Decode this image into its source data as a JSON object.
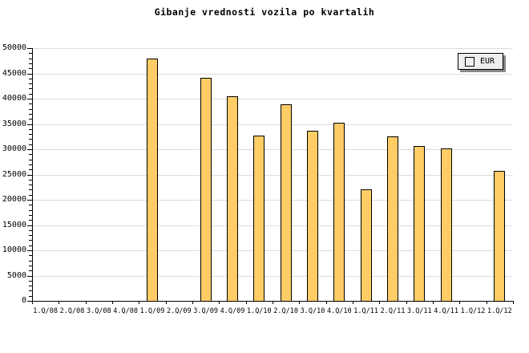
{
  "title": "Gibanje vrednosti vozila po kvartalih",
  "legend": {
    "label": "EUR"
  },
  "colors": {
    "bar_fill": "#FFCC66",
    "bar_border": "#000000",
    "gridline": "#DCDCDC",
    "axis": "#000000",
    "legend_bg": "#EEEEEE",
    "legend_shadow": "#888888",
    "background": "#FFFFFF"
  },
  "chart_data": {
    "type": "bar",
    "title": "Gibanje vrednosti vozila po kvartalih",
    "categories": [
      "1.Q/08",
      "2.Q/08",
      "3.Q/08",
      "4.Q/08",
      "1.Q/09",
      "2.Q/09",
      "3.Q/09",
      "4.Q/09",
      "1.Q/10",
      "2.Q/10",
      "3.Q/10",
      "4.Q/10",
      "1.Q/11",
      "2.Q/11",
      "3.Q/11",
      "4.Q/11",
      "1.Q/12",
      "1.Q/12"
    ],
    "series": [
      {
        "name": "EUR",
        "values": [
          null,
          null,
          null,
          null,
          48000,
          null,
          44100,
          40400,
          32700,
          38900,
          33700,
          35300,
          22100,
          32600,
          30600,
          30200,
          null,
          25700
        ]
      }
    ],
    "xlabel": "",
    "ylabel": "",
    "ylim": [
      0,
      50000
    ],
    "ytick_step": 5000,
    "yminor_tick_step": 1000,
    "ytick_labels": [
      "0",
      "5000",
      "10000",
      "15000",
      "20000",
      "25000",
      "30000",
      "35000",
      "40000",
      "45000",
      "50000"
    ],
    "grid": "horizontal-major",
    "legend_position": "top-right"
  }
}
